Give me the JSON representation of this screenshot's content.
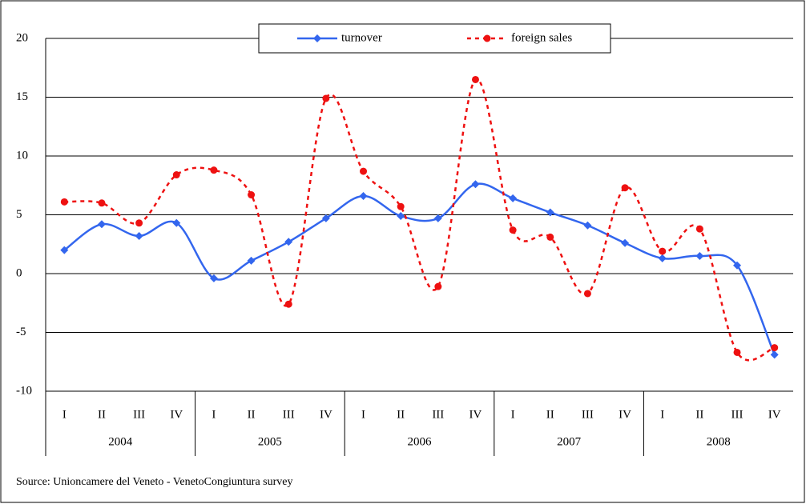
{
  "chart_data": {
    "type": "line",
    "categories": [
      "I",
      "II",
      "III",
      "IV",
      "I",
      "II",
      "III",
      "IV",
      "I",
      "II",
      "III",
      "IV",
      "I",
      "II",
      "III",
      "IV",
      "I",
      "II",
      "III",
      "IV"
    ],
    "years": [
      "2004",
      "2005",
      "2006",
      "2007",
      "2008"
    ],
    "series": [
      {
        "name": "turnover",
        "color": "#3366ee",
        "marker": "diamond",
        "dash": false,
        "values": [
          2.0,
          4.2,
          3.2,
          4.3,
          -0.4,
          1.1,
          2.7,
          4.7,
          6.6,
          4.9,
          4.7,
          7.6,
          6.4,
          5.2,
          4.1,
          2.6,
          1.3,
          1.5,
          0.7,
          -6.9
        ]
      },
      {
        "name": "foreign sales",
        "color": "#ee1111",
        "marker": "circle",
        "dash": true,
        "values": [
          6.1,
          6.0,
          4.3,
          8.4,
          8.8,
          6.7,
          -2.6,
          14.9,
          8.7,
          5.7,
          -1.1,
          16.5,
          3.7,
          3.1,
          -1.7,
          7.3,
          1.9,
          3.8,
          -6.7,
          -6.3
        ]
      }
    ],
    "ylim": [
      -10,
      20
    ],
    "yticks": [
      -10,
      -5,
      0,
      5,
      10,
      15,
      20
    ],
    "grid": true,
    "source": "Source: Unioncamere del Veneto - VenetoCongiuntura survey"
  }
}
